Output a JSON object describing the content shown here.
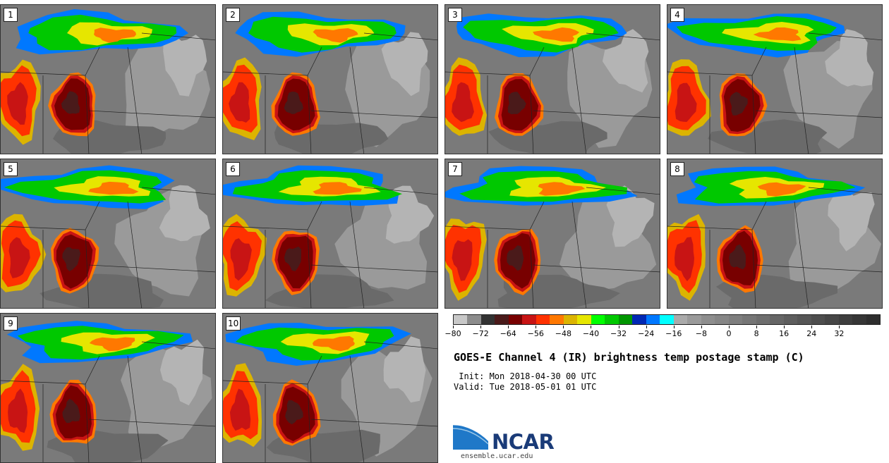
{
  "panels": [
    {
      "label": "1"
    },
    {
      "label": "2"
    },
    {
      "label": "3"
    },
    {
      "label": "4"
    },
    {
      "label": "5"
    },
    {
      "label": "6"
    },
    {
      "label": "7"
    },
    {
      "label": "8"
    },
    {
      "label": "9"
    },
    {
      "label": "10"
    }
  ],
  "colorbar": {
    "colors": [
      "#c8c8c8",
      "#8c8c8c",
      "#323232",
      "#4a1a1a",
      "#780000",
      "#c81414",
      "#ff3200",
      "#ff7800",
      "#dcb400",
      "#e6e600",
      "#00ff00",
      "#00c800",
      "#009600",
      "#0028b4",
      "#0078ff",
      "#00ffff",
      "#aaaaaa",
      "#9a9a9a",
      "#8e8e8e",
      "#868686",
      "#7e7e7e",
      "#767676",
      "#6e6e6e",
      "#666666",
      "#5e5e5e",
      "#565656",
      "#4e4e4e",
      "#464646",
      "#3e3e3e",
      "#363636",
      "#2e2e2e"
    ],
    "ticks": [
      "−80",
      "−72",
      "−64",
      "−56",
      "−48",
      "−40",
      "−32",
      "−24",
      "−16",
      "−8",
      "0",
      "8",
      "16",
      "24",
      "32"
    ]
  },
  "title": "GOES-E Channel 4 (IR) brightness temp postage stamp (C)",
  "init": " Init: Mon 2018-04-30 00 UTC",
  "valid": "Valid: Tue 2018-05-01 01 UTC",
  "logo": {
    "text": "NCAR",
    "url": "ensemble.ucar.edu"
  }
}
